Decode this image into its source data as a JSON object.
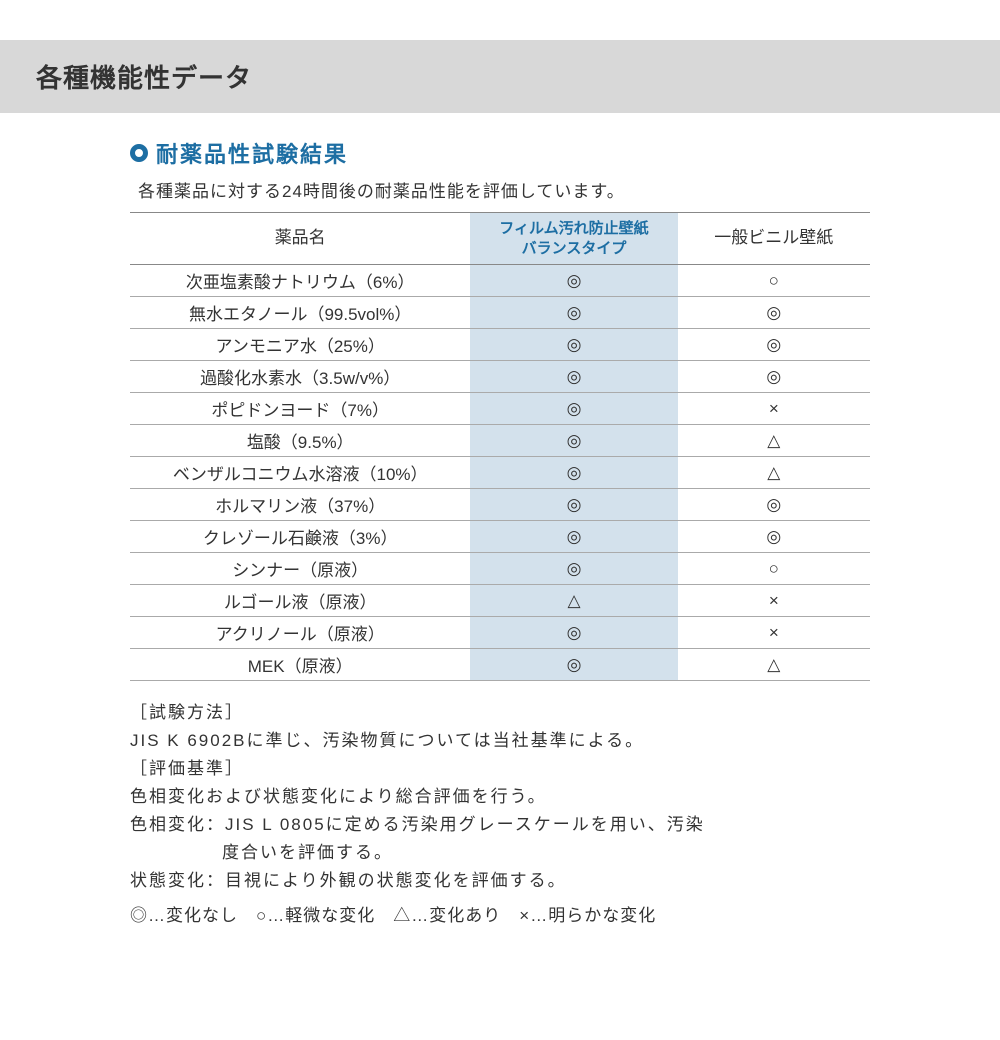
{
  "title": "各種機能性データ",
  "section": {
    "heading": "耐薬品性試験結果",
    "lead": "各種薬品に対する24時間後の耐薬品性能を評価しています。"
  },
  "table": {
    "columns": {
      "chemical": "薬品名",
      "film_line1": "フィルム汚れ防止壁紙",
      "film_line2": "バランスタイプ",
      "vinyl": "一般ビニル壁紙"
    },
    "rows": [
      {
        "chemical": "次亜塩素酸ナトリウム（6%）",
        "film": "◎",
        "vinyl": "○"
      },
      {
        "chemical": "無水エタノール（99.5vol%）",
        "film": "◎",
        "vinyl": "◎"
      },
      {
        "chemical": "アンモニア水（25%）",
        "film": "◎",
        "vinyl": "◎"
      },
      {
        "chemical": "過酸化水素水（3.5w/v%）",
        "film": "◎",
        "vinyl": "◎"
      },
      {
        "chemical": "ポピドンヨード（7%）",
        "film": "◎",
        "vinyl": "×"
      },
      {
        "chemical": "塩酸（9.5%）",
        "film": "◎",
        "vinyl": "△"
      },
      {
        "chemical": "ベンザルコニウム水溶液（10%）",
        "film": "◎",
        "vinyl": "△"
      },
      {
        "chemical": "ホルマリン液（37%）",
        "film": "◎",
        "vinyl": "◎"
      },
      {
        "chemical": "クレゾール石鹸液（3%）",
        "film": "◎",
        "vinyl": "◎"
      },
      {
        "chemical": "シンナー（原液）",
        "film": "◎",
        "vinyl": "○"
      },
      {
        "chemical": "ルゴール液（原液）",
        "film": "△",
        "vinyl": "×"
      },
      {
        "chemical": "アクリノール（原液）",
        "film": "◎",
        "vinyl": "×"
      },
      {
        "chemical": "MEK（原液）",
        "film": "◎",
        "vinyl": "△"
      }
    ]
  },
  "notes": {
    "method_label": "［試験方法］",
    "method_text": "JIS K 6902Bに準じ、汚染物質については当社基準による。",
    "criteria_label": "［評価基準］",
    "criteria_text1": "色相変化および状態変化により総合評価を行う。",
    "criteria_text2a": "色相変化：JIS L 0805に定める汚染用グレースケールを用い、汚染",
    "criteria_text2b": "度合いを評価する。",
    "criteria_text3": "状態変化：目視により外観の状態変化を評価する。"
  },
  "legend": "◎…変化なし　○…軽微な変化　△…変化あり　×…明らかな変化",
  "style": {
    "accent_color": "#1d6ea3",
    "film_bg": "#d3e1ec",
    "title_bg": "#d8d8d8",
    "text_color": "#333333"
  }
}
